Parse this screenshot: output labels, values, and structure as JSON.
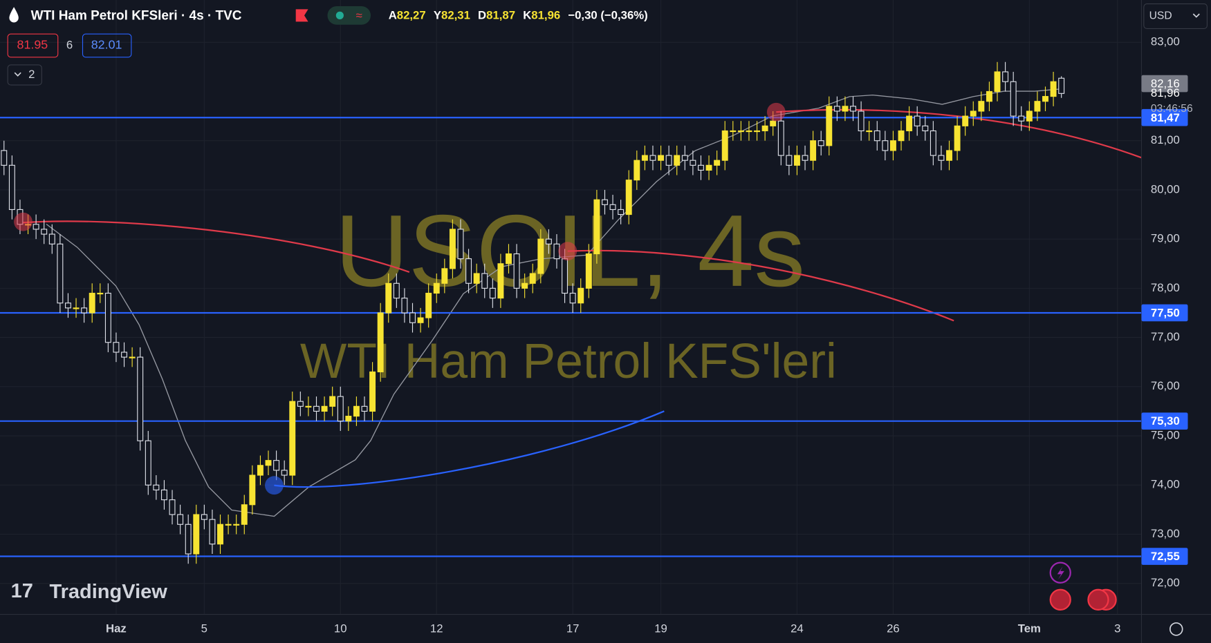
{
  "toolbar": {
    "title": "WTI Ham Petrol KFSleri · 4s · TVC",
    "ohlc": [
      {
        "key": "A",
        "value": "82,27"
      },
      {
        "key": "Y",
        "value": "82,31"
      },
      {
        "key": "D",
        "value": "81,87"
      },
      {
        "key": "K",
        "value": "81,96"
      }
    ],
    "change": "−0,30 (−0,36%)",
    "sell": "81.95",
    "spread": "6",
    "buy": "82.01",
    "indicators": "2",
    "currency": "USD"
  },
  "watermark": {
    "symbol": "USOIL, 4s",
    "description": "WTI Ham Petrol KFS'leri"
  },
  "brand": "TradingView",
  "chart_data": {
    "type": "candlestick",
    "open": [
      80.8,
      80.5,
      79.6,
      79.3,
      79.3,
      79.2,
      79.1,
      78.9,
      77.7,
      77.6,
      77.6,
      77.5,
      77.9,
      77.9,
      76.9,
      76.7,
      76.6,
      76.6,
      74.9,
      74.0,
      73.9,
      73.7,
      73.4,
      73.2,
      72.6,
      73.4,
      73.3,
      72.8,
      73.2,
      73.2,
      73.2,
      73.6,
      74.2,
      74.4,
      74.5,
      74.3,
      74.2,
      75.7,
      75.6,
      75.6,
      75.5,
      75.6,
      75.8,
      75.3,
      75.4,
      75.6,
      75.5,
      76.3,
      77.5,
      78.1,
      77.8,
      77.5,
      77.3,
      77.4,
      77.9,
      78.1,
      78.4,
      79.2,
      78.6,
      78.1,
      78.3,
      78.0,
      77.8,
      78.5,
      78.7,
      78.0,
      78.1,
      78.3,
      79.0,
      78.9,
      78.6,
      77.9,
      77.7,
      78.0,
      78.7,
      79.8,
      79.7,
      79.6,
      79.5,
      80.2,
      80.6,
      80.7,
      80.6,
      80.7,
      80.5,
      80.7,
      80.6,
      80.5,
      80.4,
      80.5,
      80.6,
      81.2,
      81.2,
      81.2,
      81.2,
      81.2,
      81.3,
      81.4,
      80.7,
      80.5,
      80.7,
      80.6,
      81.0,
      80.9,
      81.7,
      81.6,
      81.7,
      81.6,
      81.2,
      81.2,
      81.0,
      80.8,
      81.0,
      81.2,
      81.5,
      81.3,
      81.2,
      80.7,
      80.6,
      80.8,
      81.3,
      81.5,
      81.6,
      81.8,
      82.0,
      82.4,
      82.2,
      81.5,
      81.4,
      81.6,
      81.8,
      81.9,
      82.27
    ],
    "high": [
      81.0,
      80.7,
      79.8,
      79.5,
      79.5,
      79.4,
      79.3,
      79.1,
      77.9,
      77.8,
      77.8,
      78.1,
      78.1,
      78.1,
      77.1,
      76.9,
      76.8,
      76.8,
      75.1,
      74.2,
      74.1,
      73.9,
      73.6,
      73.4,
      73.6,
      73.6,
      73.5,
      73.4,
      73.4,
      73.4,
      73.8,
      74.4,
      74.6,
      74.7,
      74.7,
      74.5,
      75.9,
      75.9,
      75.8,
      75.8,
      75.8,
      76.0,
      76.0,
      75.6,
      75.8,
      75.8,
      76.5,
      77.7,
      78.3,
      78.3,
      78.0,
      77.7,
      77.6,
      78.1,
      78.3,
      78.6,
      79.4,
      79.4,
      78.8,
      78.5,
      78.5,
      78.2,
      78.7,
      78.9,
      78.9,
      78.3,
      78.5,
      79.2,
      79.2,
      79.1,
      78.8,
      78.1,
      78.2,
      78.9,
      80.0,
      80.0,
      79.9,
      79.8,
      80.4,
      80.8,
      80.9,
      80.9,
      80.9,
      80.9,
      80.9,
      80.9,
      80.8,
      80.7,
      80.7,
      80.8,
      81.4,
      81.4,
      81.4,
      81.4,
      81.4,
      81.5,
      81.6,
      81.6,
      80.9,
      80.9,
      80.9,
      81.2,
      81.2,
      81.9,
      81.9,
      81.9,
      81.9,
      81.8,
      81.4,
      81.4,
      81.2,
      81.2,
      81.4,
      81.7,
      81.7,
      81.5,
      81.4,
      80.9,
      81.0,
      81.5,
      81.7,
      81.8,
      82.0,
      82.2,
      82.6,
      82.6,
      82.4,
      81.7,
      81.8,
      82.0,
      82.1,
      82.4,
      82.31
    ],
    "low": [
      80.3,
      79.4,
      79.1,
      79.1,
      79.0,
      78.9,
      78.7,
      77.5,
      77.4,
      77.4,
      77.3,
      77.3,
      77.7,
      76.7,
      76.5,
      76.4,
      76.4,
      74.7,
      73.8,
      73.7,
      73.5,
      73.2,
      73.0,
      72.4,
      72.4,
      73.1,
      72.6,
      72.6,
      73.0,
      73.0,
      73.0,
      73.4,
      74.0,
      74.2,
      74.1,
      74.0,
      74.0,
      75.4,
      75.4,
      75.3,
      75.3,
      75.4,
      75.1,
      75.1,
      75.2,
      75.3,
      75.3,
      76.1,
      77.3,
      77.6,
      77.3,
      77.1,
      77.1,
      77.2,
      77.7,
      77.9,
      78.2,
      78.4,
      77.9,
      77.9,
      77.8,
      77.6,
      77.6,
      78.3,
      77.8,
      77.8,
      77.9,
      78.1,
      78.7,
      78.4,
      77.7,
      77.5,
      77.5,
      77.8,
      78.5,
      79.5,
      79.4,
      79.3,
      79.3,
      80.0,
      80.4,
      80.4,
      80.4,
      80.3,
      80.3,
      80.4,
      80.3,
      80.2,
      80.2,
      80.3,
      80.4,
      81.0,
      81.0,
      81.0,
      81.0,
      81.0,
      81.1,
      80.5,
      80.3,
      80.3,
      80.4,
      80.4,
      80.7,
      80.7,
      81.4,
      81.4,
      81.4,
      81.0,
      81.0,
      80.8,
      80.6,
      80.6,
      80.8,
      81.0,
      81.1,
      81.0,
      80.5,
      80.4,
      80.4,
      80.6,
      81.1,
      81.3,
      81.4,
      81.6,
      81.8,
      82.0,
      81.3,
      81.2,
      81.2,
      81.4,
      81.6,
      81.7,
      81.87
    ],
    "close": [
      80.5,
      79.6,
      79.3,
      79.3,
      79.2,
      79.1,
      78.9,
      77.7,
      77.6,
      77.6,
      77.5,
      77.9,
      77.9,
      76.9,
      76.7,
      76.6,
      76.6,
      74.9,
      74.0,
      73.9,
      73.7,
      73.4,
      73.2,
      72.6,
      73.4,
      73.3,
      72.8,
      73.2,
      73.2,
      73.2,
      73.6,
      74.2,
      74.4,
      74.5,
      74.3,
      74.2,
      75.7,
      75.6,
      75.6,
      75.5,
      75.6,
      75.8,
      75.3,
      75.4,
      75.6,
      75.5,
      76.3,
      77.5,
      78.1,
      77.8,
      77.5,
      77.3,
      77.4,
      77.9,
      78.1,
      78.4,
      79.2,
      78.6,
      78.1,
      78.3,
      78.0,
      77.8,
      78.5,
      78.7,
      78.0,
      78.1,
      78.3,
      79.0,
      78.9,
      78.6,
      77.9,
      77.7,
      78.0,
      78.7,
      79.8,
      79.7,
      79.6,
      79.5,
      80.2,
      80.6,
      80.7,
      80.6,
      80.7,
      80.5,
      80.7,
      80.6,
      80.5,
      80.4,
      80.5,
      80.6,
      81.2,
      81.2,
      81.2,
      81.2,
      81.2,
      81.3,
      81.4,
      80.7,
      80.5,
      80.7,
      80.6,
      81.0,
      80.9,
      81.7,
      81.6,
      81.7,
      81.6,
      81.2,
      81.2,
      81.0,
      80.8,
      81.0,
      81.2,
      81.5,
      81.3,
      81.2,
      80.7,
      80.6,
      80.8,
      81.3,
      81.5,
      81.6,
      81.8,
      82.0,
      82.4,
      82.2,
      81.5,
      81.4,
      81.6,
      81.8,
      81.9,
      82.2,
      81.96
    ],
    "up_color": "#f7e332",
    "down_color": "#e0e3eb",
    "xlim": [
      -0.5,
      142
    ],
    "xticks": [
      {
        "value": 14,
        "label": "Haz"
      },
      {
        "value": 25,
        "label": "5"
      },
      {
        "value": 42,
        "label": "10"
      },
      {
        "value": 54,
        "label": "12"
      },
      {
        "value": 71,
        "label": "17"
      },
      {
        "value": 82,
        "label": "19"
      },
      {
        "value": 99,
        "label": "24"
      },
      {
        "value": 111,
        "label": "26"
      },
      {
        "value": 128,
        "label": "Tem"
      },
      {
        "value": 139,
        "label": "3"
      }
    ],
    "ylim": [
      71.37,
      83.86
    ],
    "yticks": [
      {
        "value": 72,
        "label": "72,00"
      },
      {
        "value": 73,
        "label": "73,00"
      },
      {
        "value": 74,
        "label": "74,00"
      },
      {
        "value": 75,
        "label": "75,00"
      },
      {
        "value": 76,
        "label": "76,00"
      },
      {
        "value": 77,
        "label": "77,00"
      },
      {
        "value": 78,
        "label": "78,00"
      },
      {
        "value": 79,
        "label": "79,00"
      },
      {
        "value": 80,
        "label": "80,00"
      },
      {
        "value": 81,
        "label": "81,00"
      },
      {
        "value": 83,
        "label": "83,00"
      }
    ],
    "grid": true,
    "hlines": [
      {
        "value": 81.47,
        "label": "81,47"
      },
      {
        "value": 77.5,
        "label": "77,50"
      },
      {
        "value": 75.3,
        "label": "75,30"
      },
      {
        "value": 72.55,
        "label": "72,55"
      }
    ],
    "hline_color": "#2962ff",
    "last_price": {
      "value": 81.96,
      "label": "81,96"
    },
    "countdown": "03:46:56",
    "prev_marker": {
      "value": 82.16,
      "label": "82,16"
    }
  }
}
